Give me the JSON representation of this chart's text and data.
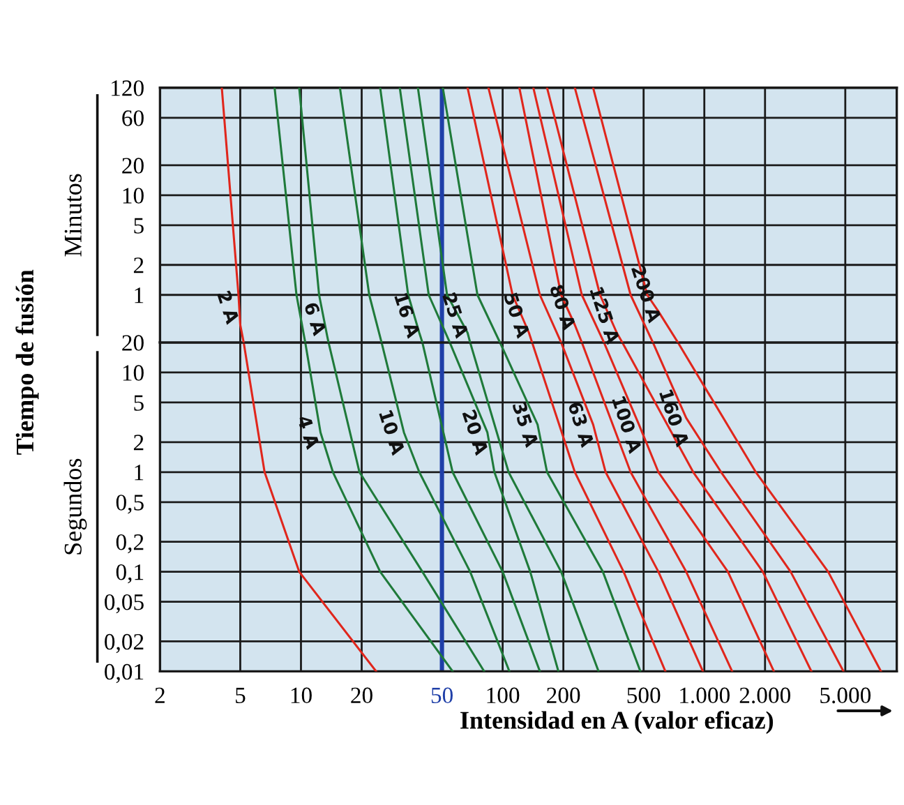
{
  "chart_data": [
    {
      "type": "line",
      "ylabel": "Tiempo de fusión",
      "annotations": [
        "Minutos"
      ],
      "log": "xy",
      "grid": true,
      "legend": false,
      "marker": "none",
      "line_style": "solid",
      "tick_labels": "y",
      "xlim": [
        2,
        9000
      ],
      "xticks": [
        2,
        5,
        10,
        20,
        50,
        100,
        200,
        500,
        1000,
        2000,
        5000
      ],
      "ylim": [
        0.333,
        120
      ],
      "yticks": [
        120,
        60,
        20,
        10,
        5,
        2,
        1
      ],
      "ref_lines": [
        {
          "axis": "x",
          "value": 50,
          "color": "#1f3fa8",
          "line_style": "solid"
        }
      ],
      "series": [
        {
          "name": "2 A",
          "color": "#e0261c",
          "x": [
            4.05,
            4.9,
            5.0,
            5.2
          ],
          "values": [
            120,
            1,
            0.5,
            0.333
          ]
        },
        {
          "color": "#1f7a3a",
          "x": [
            7.4,
            9.5,
            10.5
          ],
          "values": [
            120,
            1,
            0.333
          ]
        },
        {
          "name": "6 A",
          "color": "#1f7a3a",
          "x": [
            9.8,
            12.3,
            13.5,
            13.7
          ],
          "values": [
            120,
            1,
            0.383,
            0.333
          ]
        },
        {
          "color": "#1f7a3a",
          "x": [
            15.6,
            21.8,
            25.1
          ],
          "values": [
            120,
            1,
            0.333
          ]
        },
        {
          "name": "16 A",
          "color": "#1f7a3a",
          "x": [
            24.7,
            34,
            38.6,
            40
          ],
          "values": [
            120,
            1,
            0.417,
            0.333
          ]
        },
        {
          "color": "#1f7a3a",
          "x": [
            30.9,
            43,
            54.7
          ],
          "values": [
            120,
            1,
            0.333
          ]
        },
        {
          "name": "25 A",
          "color": "#1f7a3a",
          "x": [
            38,
            53,
            67,
            69
          ],
          "values": [
            120,
            1,
            0.417,
            0.333
          ]
        },
        {
          "color": "#1f7a3a",
          "x": [
            50.5,
            75,
            97
          ],
          "values": [
            120,
            1,
            0.333
          ]
        },
        {
          "name": "50 A",
          "color": "#e0261c",
          "x": [
            67,
            112,
            135,
            140
          ],
          "values": [
            120,
            1,
            0.417,
            0.333
          ]
        },
        {
          "color": "#e0261c",
          "x": [
            85,
            153,
            195
          ],
          "values": [
            120,
            1,
            0.333
          ]
        },
        {
          "name": "80 A",
          "color": "#e0261c",
          "x": [
            121,
            195,
            228,
            247
          ],
          "values": [
            120,
            1,
            0.5,
            0.333
          ]
        },
        {
          "color": "#e0261c",
          "x": [
            142,
            247,
            318
          ],
          "values": [
            120,
            1,
            0.333
          ]
        },
        {
          "name": "125 A",
          "color": "#e0261c",
          "x": [
            166,
            304,
            368,
            392
          ],
          "values": [
            120,
            1,
            0.417,
            0.333
          ]
        },
        {
          "color": "#e0261c",
          "x": [
            228,
            431,
            556
          ],
          "values": [
            120,
            1,
            0.333
          ]
        },
        {
          "name": "200 A",
          "color": "#e0261c",
          "x": [
            281,
            521,
            592,
            740
          ],
          "values": [
            120,
            1,
            0.683,
            0.333
          ]
        }
      ]
    },
    {
      "type": "line",
      "xlabel": "Intensidad en A (valor eficaz)",
      "annotations": [
        "Segundos"
      ],
      "log": "xy",
      "grid": true,
      "legend": false,
      "marker": "none",
      "line_style": "solid",
      "xlim": [
        2,
        9000
      ],
      "xticks": [
        2,
        5,
        10,
        20,
        50,
        100,
        200,
        500,
        {
          "value": 1000,
          "label": "1.000"
        },
        {
          "value": 2000,
          "label": "2.000"
        },
        {
          "value": 5000,
          "label": "5.000"
        }
      ],
      "ylim": [
        0.01,
        20
      ],
      "yticks": [
        20,
        10,
        5,
        2,
        1,
        {
          "value": 0.5,
          "label": "0,5"
        },
        {
          "value": 0.2,
          "label": "0,2"
        },
        {
          "value": 0.1,
          "label": "0,1"
        },
        {
          "value": 0.05,
          "label": "0,05"
        },
        {
          "value": 0.02,
          "label": "0,02"
        },
        {
          "value": 0.01,
          "label": "0,01"
        }
      ],
      "ref_lines": [
        {
          "axis": "x",
          "value": 50,
          "color": "#1f3fa8",
          "line_style": "solid"
        }
      ],
      "series": [
        {
          "color": "#e0261c",
          "x": [
            5.2,
            6.6,
            9.8,
            23.6
          ],
          "values": [
            20,
            1,
            0.1,
            0.01
          ]
        },
        {
          "name": "4 A",
          "color": "#1f7a3a",
          "x": [
            10.5,
            12.5,
            14.4,
            24.7,
            56.5
          ],
          "values": [
            20,
            2.5,
            1,
            0.1,
            0.01
          ]
        },
        {
          "color": "#1f7a3a",
          "x": [
            13.7,
            19.5,
            40,
            81
          ],
          "values": [
            20,
            1,
            0.1,
            0.01
          ]
        },
        {
          "name": "10 A",
          "color": "#1f7a3a",
          "x": [
            25.1,
            32.4,
            38.6,
            69,
            108
          ],
          "values": [
            20,
            2.5,
            1,
            0.1,
            0.01
          ]
        },
        {
          "color": "#1f7a3a",
          "x": [
            40,
            56.5,
            100,
            153
          ],
          "values": [
            20,
            1,
            0.1,
            0.01
          ]
        },
        {
          "name": "20 A",
          "color": "#1f7a3a",
          "x": [
            54.7,
            84,
            91,
            137,
            189
          ],
          "values": [
            20,
            2.5,
            1,
            0.1,
            0.01
          ]
        },
        {
          "color": "#1f7a3a",
          "x": [
            69,
            107,
            195,
            299
          ],
          "values": [
            20,
            1,
            0.1,
            0.01
          ]
        },
        {
          "name": "35 A",
          "color": "#1f7a3a",
          "x": [
            97,
            149,
            166,
            314,
            482
          ],
          "values": [
            20,
            3.0,
            1,
            0.1,
            0.01
          ]
        },
        {
          "color": "#e0261c",
          "x": [
            140,
            228,
            398,
            641
          ],
          "values": [
            20,
            1,
            0.1,
            0.01
          ]
        },
        {
          "name": "63 A",
          "color": "#e0261c",
          "x": [
            195,
            281,
            324,
            592,
            984
          ],
          "values": [
            20,
            3.0,
            1,
            0.1,
            0.01
          ]
        },
        {
          "color": "#e0261c",
          "x": [
            247,
            431,
            813,
            1374
          ],
          "values": [
            20,
            1,
            0.1,
            0.01
          ]
        },
        {
          "name": "100 A",
          "color": "#e0261c",
          "x": [
            318,
            474,
            592,
            1309,
            2213
          ],
          "values": [
            20,
            3.0,
            1,
            0.1,
            0.01
          ]
        },
        {
          "color": "#e0261c",
          "x": [
            392,
            881,
            1950,
            3396
          ],
          "values": [
            20,
            1,
            0.1,
            0.01
          ]
        },
        {
          "name": "160 A",
          "color": "#e0261c",
          "x": [
            556,
            813,
            1211,
            2679,
            4898
          ],
          "values": [
            20,
            3.5,
            1,
            0.1,
            0.01
          ]
        },
        {
          "color": "#e0261c",
          "x": [
            740,
            1800,
            4111,
            7516
          ],
          "values": [
            20,
            1,
            0.1,
            0.01
          ]
        }
      ]
    }
  ]
}
